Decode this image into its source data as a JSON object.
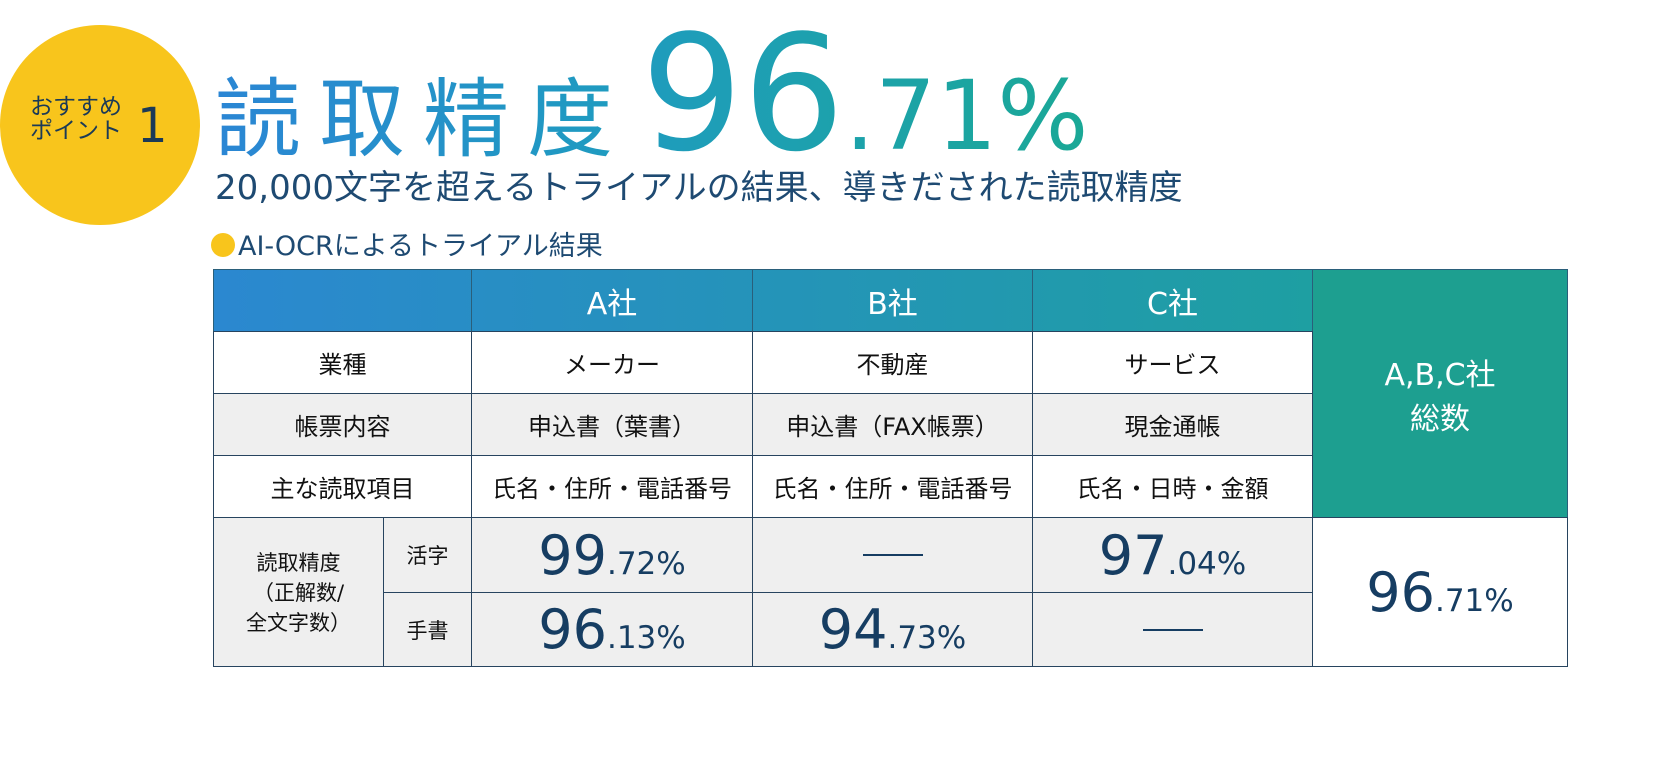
{
  "badge": {
    "line1": "おすすめ",
    "line2": "ポイント",
    "number": "1"
  },
  "header": {
    "title": "読取精度",
    "value": "96.71%",
    "subtitle": "20,000文字を超えるトライアルの結果、導きだされた読取精度"
  },
  "section": {
    "label": "AI-OCRによるトライアル結果"
  },
  "table": {
    "columns": [
      "A社",
      "B社",
      "C社"
    ],
    "total_header": [
      "A,B,C社",
      "総数"
    ],
    "rows": [
      {
        "label": "業種",
        "cells": [
          "メーカー",
          "不動産",
          "サービス"
        ]
      },
      {
        "label": "帳票内容",
        "cells": [
          "申込書（葉書）",
          "申込書（FAX帳票）",
          "現金通帳"
        ]
      },
      {
        "label": "主な読取項目",
        "cells": [
          "氏名・住所・電話番号",
          "氏名・住所・電話番号",
          "氏名・日時・金額"
        ]
      }
    ],
    "accuracy": {
      "label": [
        "読取精度",
        "（正解数/",
        "全文字数）"
      ],
      "rows": [
        {
          "label": "活字",
          "values": [
            "99.72%",
            null,
            "97.04%"
          ]
        },
        {
          "label": "手書",
          "values": [
            "96.13%",
            "94.73%",
            null
          ]
        }
      ],
      "total": "96.71%"
    }
  }
}
